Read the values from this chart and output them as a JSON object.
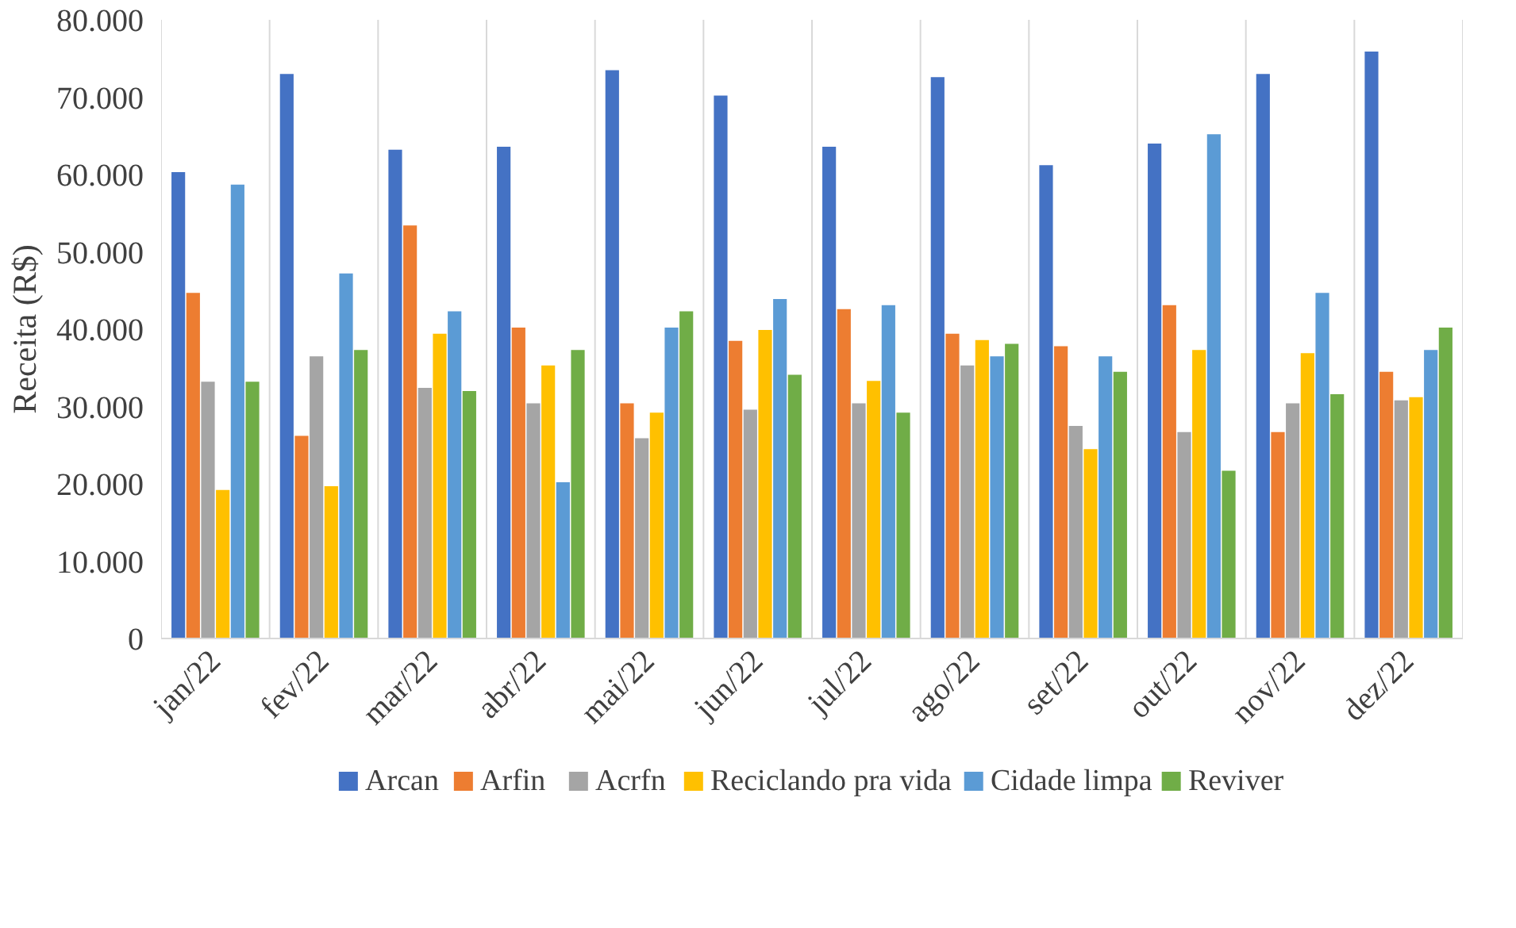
{
  "chart_data": {
    "type": "bar",
    "ylabel": "Receita (R$)",
    "categories": [
      "jan/22",
      "fev/22",
      "mar/22",
      "abr/22",
      "mai/22",
      "jun/22",
      "jul/22",
      "ago/22",
      "set/22",
      "out/22",
      "nov/22",
      "dez/22"
    ],
    "series": [
      {
        "name": "Arcan",
        "color": "#4472c4",
        "values": [
          60300,
          73000,
          63200,
          63600,
          73500,
          70200,
          63600,
          72600,
          61200,
          64000,
          73000,
          75900
        ]
      },
      {
        "name": "Arfin",
        "color": "#ed7d31",
        "values": [
          44700,
          26200,
          53400,
          40200,
          30400,
          38500,
          42600,
          39400,
          37800,
          43100,
          26700,
          34500
        ]
      },
      {
        "name": "Acrfn",
        "color": "#a5a5a5",
        "values": [
          33200,
          36500,
          32400,
          30400,
          25900,
          29600,
          30400,
          35300,
          27500,
          26700,
          30400,
          30800
        ]
      },
      {
        "name": "Reciclando pra vida",
        "color": "#ffc000",
        "values": [
          19200,
          19700,
          39400,
          35300,
          29200,
          39900,
          33300,
          38600,
          24500,
          37300,
          36900,
          31200
        ]
      },
      {
        "name": "Cidade limpa",
        "color": "#5b9bd5",
        "values": [
          58700,
          47200,
          42300,
          20200,
          40200,
          43900,
          43100,
          36500,
          36500,
          65200,
          44700,
          37300
        ]
      },
      {
        "name": "Reviver",
        "color": "#70ad47",
        "values": [
          33200,
          37300,
          32000,
          37300,
          42300,
          34100,
          29200,
          38100,
          34500,
          21700,
          31600,
          40200
        ]
      }
    ],
    "ylim": [
      0,
      80000
    ],
    "yticks": [
      {
        "value": 0,
        "label": "0"
      },
      {
        "value": 10000,
        "label": "10.000"
      },
      {
        "value": 20000,
        "label": "20.000"
      },
      {
        "value": 30000,
        "label": "30.000"
      },
      {
        "value": 40000,
        "label": "40.000"
      },
      {
        "value": 50000,
        "label": "50.000"
      },
      {
        "value": 60000,
        "label": "60.000"
      },
      {
        "value": 70000,
        "label": "70.000"
      },
      {
        "value": 80000,
        "label": "80.000"
      }
    ],
    "grid": "x",
    "legend": "bottom"
  }
}
